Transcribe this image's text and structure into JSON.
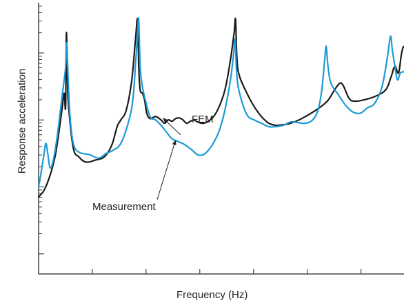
{
  "chart_data": {
    "type": "line",
    "xlabel": "Frequency (Hz)",
    "ylabel": "Response acceleration",
    "x_tick_labels": "none",
    "y_tick_labels": "none",
    "y_scale": "log",
    "grid": false,
    "xlim": [
      0,
      100
    ],
    "ylim": [
      -3.3,
      0.75
    ],
    "series": [
      {
        "name": "FEM",
        "color": "#1a1a1a",
        "points": [
          [
            0,
            -2.15
          ],
          [
            1.5,
            -2.05
          ],
          [
            3,
            -1.85
          ],
          [
            4.5,
            -1.55
          ],
          [
            5.5,
            -1.2
          ],
          [
            6.5,
            -0.8
          ],
          [
            7,
            -0.6
          ],
          [
            7.4,
            -0.8
          ],
          [
            7.6,
            0.3
          ],
          [
            7.9,
            -0.4
          ],
          [
            8.2,
            -0.8
          ],
          [
            9.5,
            -1.42
          ],
          [
            11,
            -1.55
          ],
          [
            13,
            -1.63
          ],
          [
            15.5,
            -1.6
          ],
          [
            18,
            -1.55
          ],
          [
            20,
            -1.38
          ],
          [
            21.5,
            -1.1
          ],
          [
            22.5,
            -1.0
          ],
          [
            24,
            -0.85
          ],
          [
            25.5,
            -0.4
          ],
          [
            26.5,
            0.2
          ],
          [
            27.1,
            0.5
          ],
          [
            27.4,
            -0.2
          ],
          [
            27.8,
            -0.55
          ],
          [
            28.4,
            -0.6
          ],
          [
            29,
            -0.7
          ],
          [
            29.6,
            -0.9
          ],
          [
            30.5,
            -0.98
          ],
          [
            32,
            -0.95
          ],
          [
            33.5,
            -1.0
          ],
          [
            34.5,
            -1.05
          ],
          [
            35.5,
            -1.0
          ],
          [
            36.5,
            -1.02
          ],
          [
            37.5,
            -0.98
          ],
          [
            38.5,
            -0.97
          ],
          [
            39.5,
            -1.0
          ],
          [
            40.5,
            -1.05
          ],
          [
            41.5,
            -1.02
          ],
          [
            42.5,
            -1.0
          ],
          [
            43.5,
            -1.03
          ],
          [
            45,
            -1.05
          ],
          [
            47,
            -1.0
          ],
          [
            49,
            -0.85
          ],
          [
            51,
            -0.55
          ],
          [
            52.5,
            -0.1
          ],
          [
            53.5,
            0.3
          ],
          [
            53.9,
            0.5
          ],
          [
            54.3,
            -0.1
          ],
          [
            55,
            -0.35
          ],
          [
            57,
            -0.6
          ],
          [
            59,
            -0.8
          ],
          [
            61,
            -0.95
          ],
          [
            63,
            -1.05
          ],
          [
            65,
            -1.08
          ],
          [
            67,
            -1.07
          ],
          [
            69,
            -1.05
          ],
          [
            72,
            -0.98
          ],
          [
            76,
            -0.85
          ],
          [
            79,
            -0.72
          ],
          [
            81,
            -0.55
          ],
          [
            82.5,
            -0.45
          ],
          [
            83.5,
            -0.5
          ],
          [
            85,
            -0.68
          ],
          [
            86.5,
            -0.72
          ],
          [
            89,
            -0.7
          ],
          [
            92,
            -0.65
          ],
          [
            95,
            -0.55
          ],
          [
            96.5,
            -0.35
          ],
          [
            97.5,
            -0.2
          ],
          [
            98.5,
            -0.3
          ],
          [
            99.2,
            -0.05
          ],
          [
            99.7,
            0.08
          ],
          [
            100,
            0.09
          ]
        ]
      },
      {
        "name": "Measurement",
        "color": "#1b9ad6",
        "points": [
          [
            0,
            -2.0
          ],
          [
            0.8,
            -1.75
          ],
          [
            1.5,
            -1.5
          ],
          [
            2,
            -1.35
          ],
          [
            2.5,
            -1.5
          ],
          [
            3.2,
            -1.72
          ],
          [
            4.2,
            -1.55
          ],
          [
            5.2,
            -1.2
          ],
          [
            6.2,
            -0.75
          ],
          [
            7,
            -0.4
          ],
          [
            7.4,
            -0.2
          ],
          [
            7.7,
            0.15
          ],
          [
            8.1,
            -0.4
          ],
          [
            8.6,
            -0.95
          ],
          [
            9.5,
            -1.35
          ],
          [
            11,
            -1.48
          ],
          [
            14,
            -1.52
          ],
          [
            16.5,
            -1.57
          ],
          [
            18.5,
            -1.5
          ],
          [
            20.5,
            -1.45
          ],
          [
            22.5,
            -1.35
          ],
          [
            24.5,
            -1.05
          ],
          [
            25.8,
            -0.7
          ],
          [
            26.6,
            -0.1
          ],
          [
            27.1,
            0.3
          ],
          [
            27.4,
            0.5
          ],
          [
            27.8,
            -0.2
          ],
          [
            28.4,
            -0.5
          ],
          [
            29.2,
            -0.7
          ],
          [
            30.5,
            -0.95
          ],
          [
            32,
            -1.0
          ],
          [
            33.5,
            -1.08
          ],
          [
            35,
            -1.18
          ],
          [
            36.5,
            -1.28
          ],
          [
            38.5,
            -1.33
          ],
          [
            40,
            -1.37
          ],
          [
            42,
            -1.45
          ],
          [
            43.5,
            -1.52
          ],
          [
            45,
            -1.52
          ],
          [
            46.5,
            -1.45
          ],
          [
            48,
            -1.33
          ],
          [
            49.5,
            -1.15
          ],
          [
            51,
            -0.85
          ],
          [
            52.5,
            -0.4
          ],
          [
            53.3,
            -0.05
          ],
          [
            53.8,
            0.2
          ],
          [
            54.2,
            -0.3
          ],
          [
            55,
            -0.6
          ],
          [
            57,
            -0.92
          ],
          [
            59,
            -1.0
          ],
          [
            61,
            -1.05
          ],
          [
            63,
            -1.1
          ],
          [
            65,
            -1.1
          ],
          [
            67,
            -1.08
          ],
          [
            69,
            -1.03
          ],
          [
            71,
            -1.04
          ],
          [
            73,
            -1.05
          ],
          [
            75,
            -1.0
          ],
          [
            76.5,
            -0.85
          ],
          [
            77.5,
            -0.55
          ],
          [
            78.3,
            -0.1
          ],
          [
            78.7,
            0.1
          ],
          [
            79.2,
            -0.2
          ],
          [
            80,
            -0.45
          ],
          [
            82,
            -0.62
          ],
          [
            84,
            -0.78
          ],
          [
            86,
            -0.88
          ],
          [
            88,
            -0.9
          ],
          [
            90,
            -0.82
          ],
          [
            92,
            -0.75
          ],
          [
            94,
            -0.5
          ],
          [
            95.5,
            -0.05
          ],
          [
            96.3,
            0.25
          ],
          [
            96.8,
            0.05
          ],
          [
            97.5,
            -0.2
          ],
          [
            98.2,
            -0.4
          ],
          [
            99,
            -0.3
          ],
          [
            100,
            -0.28
          ]
        ]
      }
    ],
    "annotations": [
      {
        "text": "FEM",
        "points_to_x": 34,
        "points_to_y": -0.97
      },
      {
        "text": "Measurement",
        "points_to_x": 37.5,
        "points_to_y": -1.3
      }
    ],
    "tick_marks": {
      "left_major_count": 4,
      "left_minor_per_decade": 8,
      "bottom_count": 6
    }
  }
}
